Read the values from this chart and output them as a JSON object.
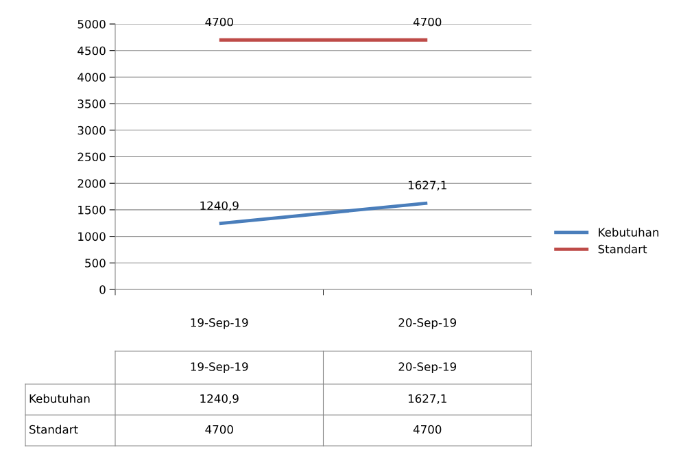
{
  "chart_data": {
    "type": "line",
    "categories": [
      "19-Sep-19",
      "20-Sep-19"
    ],
    "series": [
      {
        "name": "Kebutuhan",
        "color": "#4a7ebb",
        "values": [
          1240.9,
          1627.1
        ],
        "value_labels": [
          "1240,9",
          "1627,1"
        ]
      },
      {
        "name": "Standart",
        "color": "#be4b48",
        "values": [
          4700,
          4700
        ],
        "value_labels": [
          "4700",
          "4700"
        ]
      }
    ],
    "ylim": [
      0,
      5000
    ],
    "yticks": [
      0,
      500,
      1000,
      1500,
      2000,
      2500,
      3000,
      3500,
      4000,
      4500,
      5000
    ],
    "grid": "y",
    "legend": "right",
    "marker": "none",
    "line_style": "solid"
  }
}
